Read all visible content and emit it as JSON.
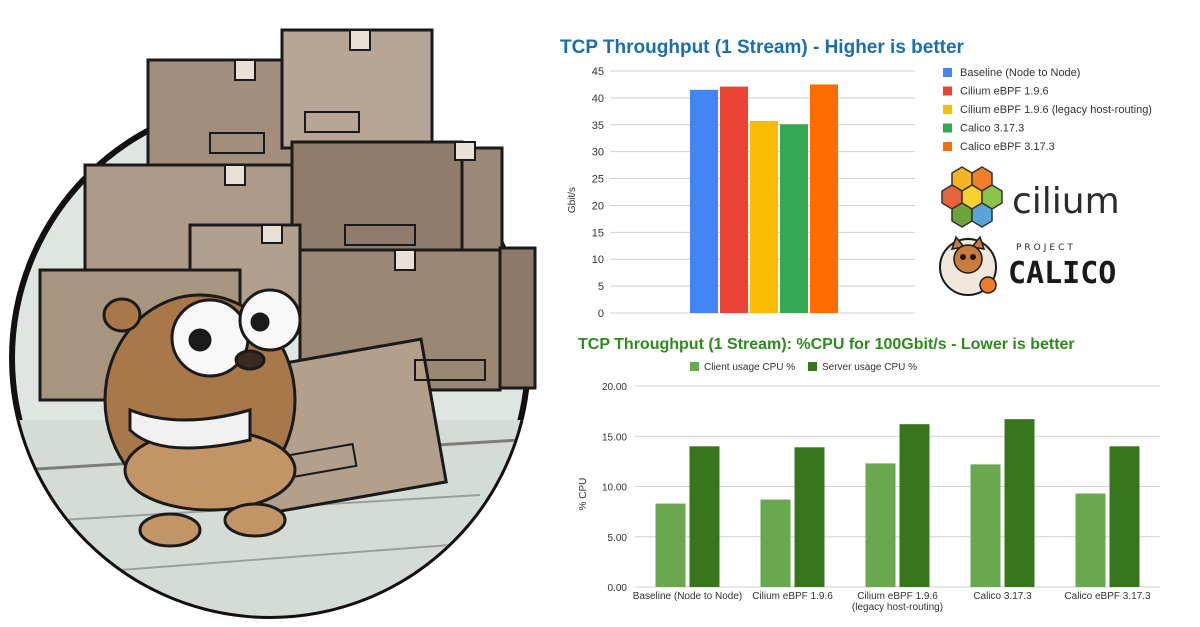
{
  "chart_data": [
    {
      "type": "bar",
      "title": "TCP Throughput (1 Stream) - Higher is better",
      "ylabel": "Gbit/s",
      "ylim": [
        0,
        45
      ],
      "yticks": [
        0,
        5,
        10,
        15,
        20,
        25,
        30,
        35,
        40,
        45
      ],
      "legend_position": "right",
      "grid": true,
      "series": [
        {
          "name": "Baseline (Node to Node)",
          "value": 41.5,
          "color": "#4285f4"
        },
        {
          "name": "Cilium eBPF 1.9.6",
          "value": 42.1,
          "color": "#ea4335"
        },
        {
          "name": "Cilium eBPF 1.9.6 (legacy host-routing)",
          "value": 35.7,
          "color": "#fbbc04"
        },
        {
          "name": "Calico 3.17.3",
          "value": 35.1,
          "color": "#34a853"
        },
        {
          "name": "Calico eBPF 3.17.3",
          "value": 42.5,
          "color": "#ff6d01"
        }
      ]
    },
    {
      "type": "bar",
      "title": "TCP Throughput (1 Stream): %CPU for 100Gbit/s - Lower is better",
      "ylabel": "% CPU",
      "ylim": [
        0,
        20
      ],
      "yticks": [
        "0.00",
        "5.00",
        "10.00",
        "15.00",
        "20.00"
      ],
      "legend_position": "top",
      "grid": true,
      "categories": [
        [
          "Baseline (Node to Node)"
        ],
        [
          "Cilium eBPF 1.9.6"
        ],
        [
          "Cilium eBPF 1.9.6",
          "(legacy host-routing)"
        ],
        [
          "Calico 3.17.3"
        ],
        [
          "Calico eBPF 3.17.3"
        ]
      ],
      "series": [
        {
          "name": "Client usage CPU %",
          "color": "#6aa84f",
          "values": [
            8.3,
            8.7,
            12.3,
            12.2,
            9.3
          ]
        },
        {
          "name": "Server usage CPU %",
          "color": "#38761d",
          "values": [
            14.0,
            13.9,
            16.2,
            16.7,
            14.0
          ]
        }
      ]
    }
  ],
  "logos": {
    "cilium": "cilium",
    "project": "PROJECT",
    "calico": "CALICO"
  },
  "icons": [
    "gopher-illustration",
    "cilium-logo-icon",
    "calico-cat-icon"
  ]
}
